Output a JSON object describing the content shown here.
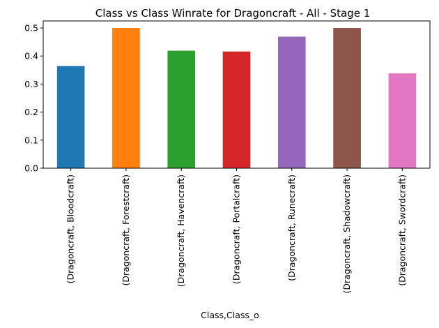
{
  "chart_data": {
    "type": "bar",
    "title": "Class vs Class Winrate for Dragoncraft - All - Stage 1",
    "xlabel": "Class,Class_o",
    "ylabel": "",
    "ylim": [
      0,
      0.525
    ],
    "yticks": [
      "0.0",
      "0.1",
      "0.2",
      "0.3",
      "0.4",
      "0.5"
    ],
    "grid": false,
    "legend": false,
    "categories": [
      "(Dragoncraft, Bloodcraft)",
      "(Dragoncraft, Forestcraft)",
      "(Dragoncraft, Havencraft)",
      "(Dragoncraft, Portalcraft)",
      "(Dragoncraft, Runecraft)",
      "(Dragoncraft, Shadowcraft)",
      "(Dragoncraft, Swordcraft)"
    ],
    "values": [
      0.364,
      0.5,
      0.419,
      0.416,
      0.469,
      0.5,
      0.338
    ],
    "colors": [
      "#1f77b4",
      "#ff7f0e",
      "#2ca02c",
      "#d62728",
      "#9467bd",
      "#8c564b",
      "#e377c2"
    ]
  }
}
